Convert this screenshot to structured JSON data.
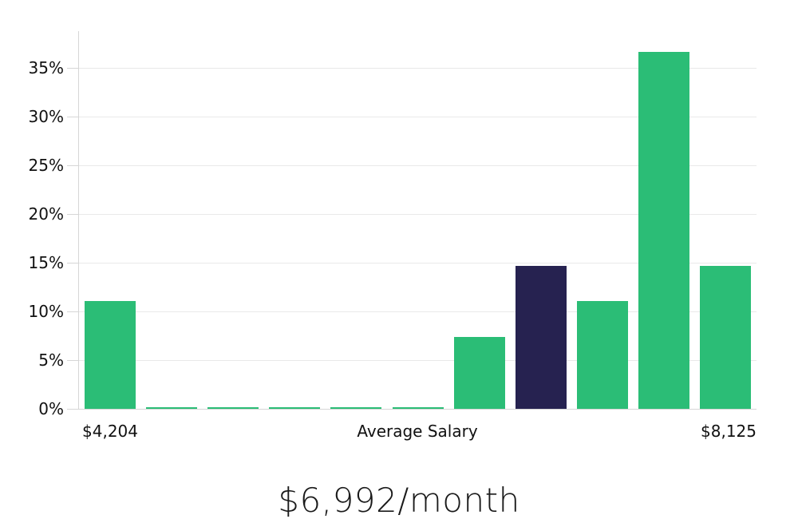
{
  "chart_data": {
    "type": "bar",
    "title": "$6,992/month",
    "xlabel": "",
    "ylabel": "",
    "y_ticks": [
      "0%",
      "5%",
      "10%",
      "15%",
      "20%",
      "25%",
      "30%",
      "35%"
    ],
    "ylim": [
      0,
      38.8
    ],
    "grid": true,
    "legend": "none",
    "x_tick_labels": [
      "$4,204",
      "Average Salary",
      "$8,125"
    ],
    "bars": [
      {
        "value": 11.1,
        "color": "green"
      },
      {
        "value": 0.2,
        "color": "green"
      },
      {
        "value": 0.2,
        "color": "green"
      },
      {
        "value": 0.2,
        "color": "green"
      },
      {
        "value": 0.2,
        "color": "green"
      },
      {
        "value": 0.2,
        "color": "green"
      },
      {
        "value": 7.4,
        "color": "green"
      },
      {
        "value": 14.7,
        "color": "navy"
      },
      {
        "value": 11.1,
        "color": "green"
      },
      {
        "value": 36.7,
        "color": "green"
      },
      {
        "value": 14.7,
        "color": "green"
      }
    ],
    "colors": {
      "green": "#2BBD76",
      "navy": "#262250"
    }
  }
}
